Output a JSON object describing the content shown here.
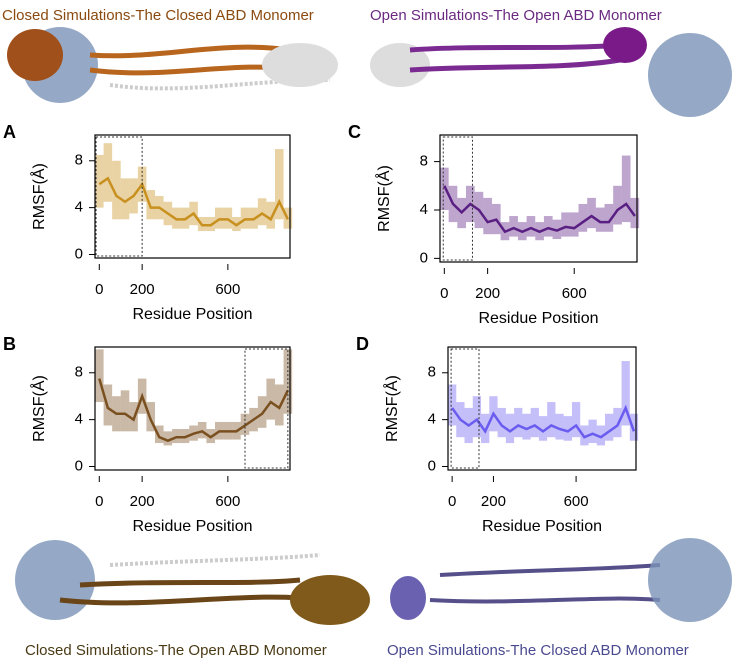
{
  "captions": {
    "top_left": "Closed Simulations-The Closed ABD Monomer",
    "top_right": "Open Simulations-The Open ABD Monomer",
    "bottom_left": "Closed Simulations-The Open ABD Monomer",
    "bottom_right": "Open Simulations-The Closed ABD Monomer"
  },
  "chart_data": [
    {
      "type": "line",
      "panel": "A",
      "xlabel": "Residue Position",
      "ylabel": "RMSF(Å)",
      "xlim": [
        -20,
        890
      ],
      "ylim": [
        -0.3,
        10.2
      ],
      "xticks": [
        0,
        200,
        600
      ],
      "yticks": [
        0,
        4,
        8
      ],
      "highlight": [
        -15,
        200
      ],
      "x": [
        0,
        40,
        80,
        120,
        160,
        200,
        240,
        280,
        320,
        360,
        400,
        440,
        480,
        520,
        560,
        600,
        640,
        680,
        720,
        760,
        800,
        840,
        880
      ],
      "series": [
        {
          "color": "#c8901e",
          "values": [
            6,
            6.5,
            5,
            4.5,
            5,
            6,
            4,
            4,
            3.5,
            3,
            3,
            3.5,
            2.5,
            2.5,
            3,
            3,
            2.5,
            3,
            3,
            3.5,
            3,
            4.5,
            3
          ],
          "lower": [
            4,
            4.5,
            3,
            3,
            3.5,
            4.5,
            3,
            3,
            2.5,
            2.2,
            2.2,
            2.5,
            2,
            2,
            2.2,
            2.2,
            2,
            2.2,
            2.2,
            2.5,
            2.2,
            3,
            2.2
          ],
          "upper": [
            8.5,
            9.5,
            8,
            6.5,
            6.5,
            7.5,
            5.5,
            5,
            4.5,
            4,
            4,
            4.5,
            3.2,
            3.2,
            4,
            4,
            3.2,
            4,
            4,
            4.8,
            4.5,
            9,
            4
          ]
        }
      ]
    },
    {
      "type": "line",
      "panel": "C",
      "xlabel": "Residue Position",
      "ylabel": "RMSF(Å)",
      "xlim": [
        -20,
        890
      ],
      "ylim": [
        -0.3,
        10.2
      ],
      "xticks": [
        0,
        200,
        600
      ],
      "yticks": [
        0,
        4,
        8
      ],
      "highlight": [
        -5,
        130
      ],
      "x": [
        0,
        40,
        80,
        120,
        160,
        200,
        240,
        280,
        320,
        360,
        400,
        440,
        480,
        520,
        560,
        600,
        640,
        680,
        720,
        760,
        800,
        840,
        880
      ],
      "series": [
        {
          "color": "#5a1f82",
          "values": [
            6,
            4.5,
            3.8,
            4.5,
            4,
            3,
            3.2,
            2.2,
            2.5,
            2.2,
            2.5,
            2.2,
            2.5,
            2.3,
            2.6,
            2.5,
            3,
            3.5,
            3,
            3,
            4,
            4.5,
            3.5
          ],
          "lower": [
            4,
            3,
            2.5,
            3,
            2.5,
            2,
            2,
            1.5,
            1.8,
            1.5,
            1.8,
            1.5,
            1.8,
            1.6,
            1.8,
            1.8,
            2.2,
            2.5,
            2.2,
            2.2,
            2.8,
            3,
            2.5
          ],
          "upper": [
            7.5,
            6,
            5,
            6,
            5.5,
            5,
            4.5,
            3,
            3.5,
            3,
            3.5,
            3,
            3.5,
            3.2,
            3.8,
            3.8,
            4.5,
            5,
            4.2,
            4.5,
            6,
            8.5,
            5
          ]
        }
      ]
    },
    {
      "type": "line",
      "panel": "B",
      "xlabel": "Residue Position",
      "ylabel": "RMSF(Å)",
      "xlim": [
        -20,
        890
      ],
      "ylim": [
        -0.3,
        10.2
      ],
      "xticks": [
        0,
        200,
        600
      ],
      "yticks": [
        0,
        4,
        8
      ],
      "highlight": [
        680,
        880
      ],
      "x": [
        0,
        40,
        80,
        120,
        160,
        200,
        240,
        280,
        320,
        360,
        400,
        440,
        480,
        520,
        560,
        600,
        640,
        680,
        720,
        760,
        800,
        840,
        880
      ],
      "series": [
        {
          "color": "#7a5020",
          "values": [
            7.5,
            5,
            4.5,
            4.5,
            4,
            6,
            4,
            2.5,
            2.2,
            2.5,
            2.5,
            2.8,
            3,
            2.5,
            3,
            3,
            3,
            3.5,
            4,
            4.5,
            5.5,
            5,
            6.5
          ],
          "lower": [
            5.5,
            3.5,
            3,
            3,
            3,
            4.5,
            3,
            2,
            1.8,
            2,
            2,
            2.2,
            2.4,
            2,
            2.3,
            2.3,
            2.3,
            2.7,
            3,
            3.3,
            4,
            3.5,
            4.5
          ],
          "upper": [
            10,
            7,
            6,
            6.5,
            5.5,
            7.5,
            5.5,
            3.5,
            3,
            3.2,
            3.2,
            3.5,
            3.8,
            3.2,
            3.8,
            3.8,
            3.8,
            4.5,
            5,
            6,
            7.5,
            7,
            10
          ]
        }
      ]
    },
    {
      "type": "line",
      "panel": "D",
      "xlabel": "Residue Position",
      "ylabel": "RMSF(Å)",
      "xlim": [
        -20,
        890
      ],
      "ylim": [
        -0.3,
        10.2
      ],
      "xticks": [
        0,
        200,
        600
      ],
      "yticks": [
        0,
        4,
        8
      ],
      "highlight": [
        -5,
        130
      ],
      "x": [
        0,
        40,
        80,
        120,
        160,
        200,
        240,
        280,
        320,
        360,
        400,
        440,
        480,
        520,
        560,
        600,
        640,
        680,
        720,
        760,
        800,
        840,
        880
      ],
      "series": [
        {
          "color": "#6b5cf0",
          "values": [
            5,
            4,
            3.5,
            4,
            3,
            4.5,
            3.5,
            3,
            3.5,
            3.2,
            3.5,
            3,
            3.5,
            3.2,
            3,
            3.5,
            2.5,
            2.8,
            2.5,
            3,
            3.5,
            5,
            3
          ],
          "lower": [
            3.5,
            2.5,
            2,
            2.5,
            2,
            3,
            2.5,
            2,
            2.5,
            2.3,
            2.5,
            2.2,
            2.5,
            2.3,
            2.2,
            2.5,
            1.8,
            2,
            1.8,
            2.2,
            2.5,
            3.5,
            2.2
          ],
          "upper": [
            7,
            5.5,
            5,
            6,
            4.5,
            6,
            5,
            4.5,
            5,
            4.5,
            5,
            4.3,
            5.5,
            4.5,
            4.3,
            5.5,
            3.5,
            4,
            3.5,
            4.5,
            5,
            9,
            4.5
          ]
        }
      ]
    }
  ]
}
